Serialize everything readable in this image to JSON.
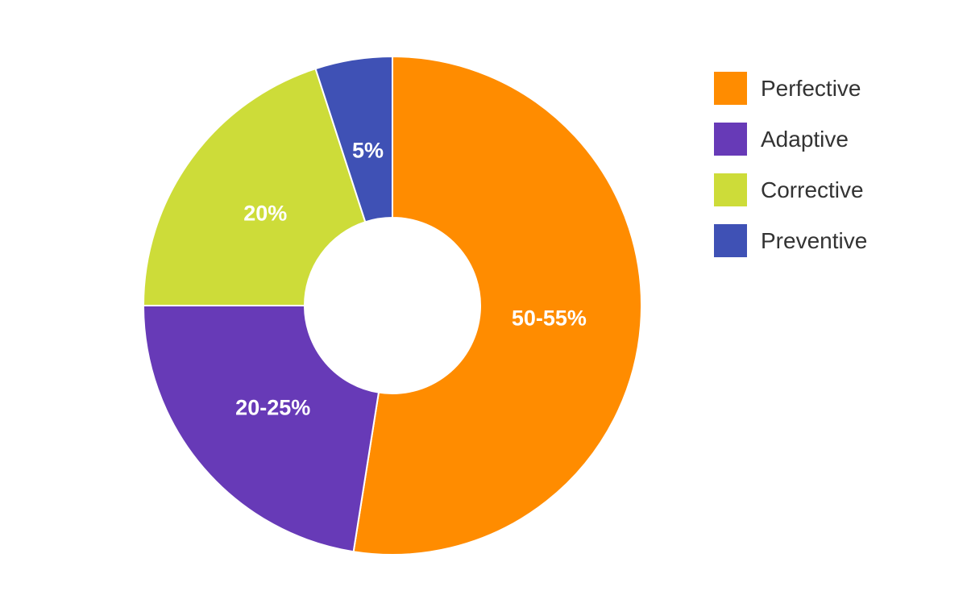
{
  "chart_data": {
    "type": "pie",
    "variant": "donut",
    "title": "",
    "slices": [
      {
        "name": "Perfective",
        "value": 52.5,
        "label": "50-55%",
        "color": "#FF8C00"
      },
      {
        "name": "Adaptive",
        "value": 22.5,
        "label": "20-25%",
        "color": "#673AB7"
      },
      {
        "name": "Corrective",
        "value": 20,
        "label": "20%",
        "color": "#CDDC39"
      },
      {
        "name": "Preventive",
        "value": 5,
        "label": "5%",
        "color": "#3F51B5"
      }
    ],
    "legend_position": "right",
    "start": "top, clockwise"
  },
  "legend": {
    "items": [
      {
        "label": "Perfective",
        "color": "#FF8C00"
      },
      {
        "label": "Adaptive",
        "color": "#673AB7"
      },
      {
        "label": "Corrective",
        "color": "#CDDC39"
      },
      {
        "label": "Preventive",
        "color": "#3F51B5"
      }
    ]
  }
}
